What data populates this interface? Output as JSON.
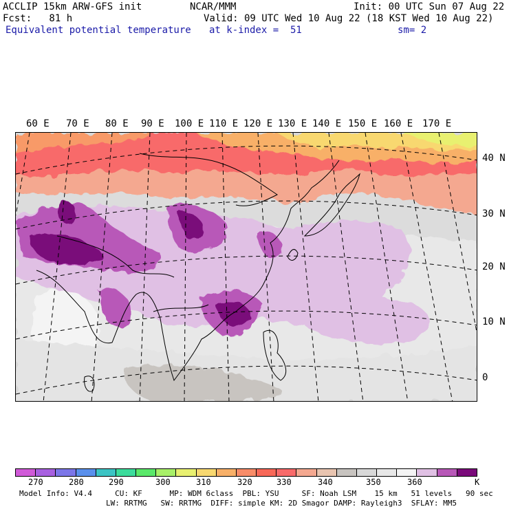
{
  "header": {
    "model": "ACCLIP 15km ARW-GFS init",
    "center": "NCAR/MMM",
    "init": "Init: 00 UTC Sun 07 Aug 22",
    "fcst": "Fcst:   81 h",
    "valid": "Valid: 09 UTC Wed 10 Aug 22 (18 KST Wed 10 Aug 22)",
    "field": "Equivalent potential temperature",
    "level": "at k-index =  51",
    "smooth": "sm= 2"
  },
  "map": {
    "lon_labels": [
      "60 E",
      "70 E",
      "80 E",
      "90 E",
      "100 E",
      "110 E",
      "120 E",
      "130 E",
      "140 E",
      "150 E",
      "160 E",
      "170 E"
    ],
    "lat_labels": [
      "40 N",
      "30 N",
      "20 N",
      "10 N",
      "0"
    ]
  },
  "colorbar": {
    "unit": "K",
    "tick_labels": [
      "270",
      "280",
      "290",
      "300",
      "310",
      "320",
      "330",
      "340",
      "350",
      "360"
    ],
    "colors": [
      "#d05ad8",
      "#a860e0",
      "#7c76e8",
      "#5a90ec",
      "#3cc4c4",
      "#3cdc9c",
      "#5ae86a",
      "#a8f068",
      "#e8f070",
      "#f8d870",
      "#f8b068",
      "#f88c68",
      "#f86858",
      "#f86a6a",
      "#f4a890",
      "#e8c4b0",
      "#c8c4c0",
      "#d8d8d8",
      "#e8e8e8",
      "#f4f4f4",
      "#e0c0e4",
      "#b858b8",
      "#7a0a7a"
    ]
  },
  "footer": {
    "line1": "Model Info: V4.4     CU: KF      MP: WDM 6class  PBL: YSU     SF: Noah LSM    15 km   51 levels   90 sec",
    "line2": "LW: RRTMG   SW: RRTMG  DIFF: simple KM: 2D Smagor DAMP: Rayleigh3  SFLAY: MM5"
  }
}
